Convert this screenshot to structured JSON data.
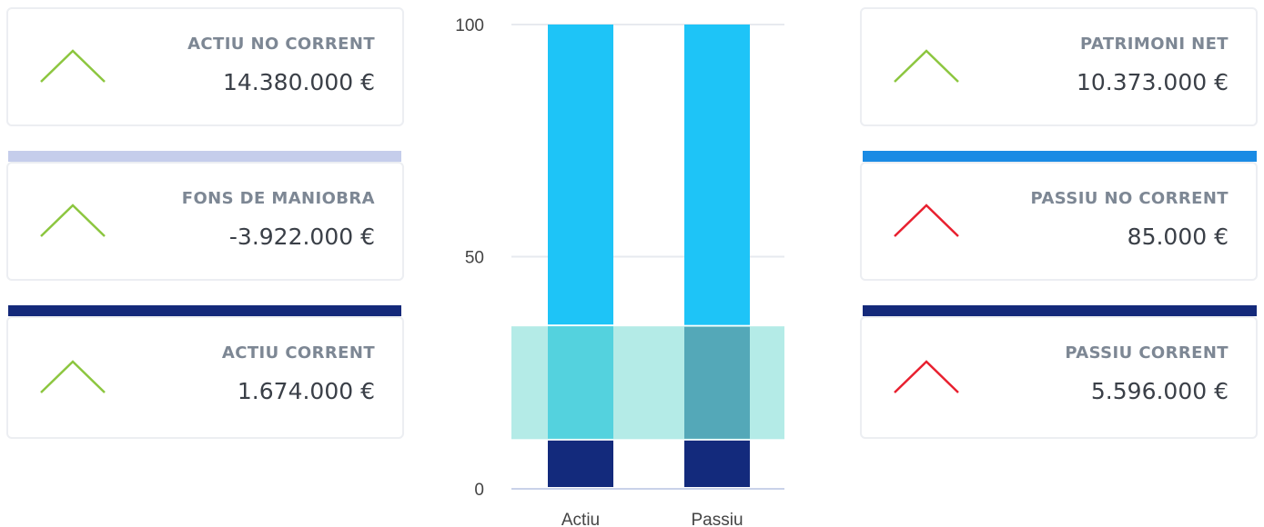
{
  "cards": {
    "left": [
      {
        "label": "ACTIU NO CORRENT",
        "value": "14.380.000 €",
        "trend": "up",
        "trend_color": "#8cc63f",
        "accent_color": ""
      },
      {
        "label": "FONS DE MANIOBRA",
        "value": "-3.922.000 €",
        "trend": "up",
        "trend_color": "#8cc63f",
        "accent_color": "#c5cdeb"
      },
      {
        "label": "ACTIU CORRENT",
        "value": "1.674.000 €",
        "trend": "up",
        "trend_color": "#8cc63f",
        "accent_color": "#14297a"
      }
    ],
    "right": [
      {
        "label": "PATRIMONI NET",
        "value": "10.373.000 €",
        "trend": "up",
        "trend_color": "#8cc63f",
        "accent_color": ""
      },
      {
        "label": "PASSIU NO CORRENT",
        "value": "85.000 €",
        "trend": "down",
        "trend_color": "#e8202f",
        "accent_color": "#1a8be4"
      },
      {
        "label": "PASSIU CORRENT",
        "value": "5.596.000 €",
        "trend": "down",
        "trend_color": "#e8202f",
        "accent_color": "#14297a"
      }
    ]
  },
  "chart_data": {
    "type": "bar",
    "stacked": true,
    "categories": [
      "Actiu",
      "Passiu"
    ],
    "yticks": [
      0,
      50,
      100
    ],
    "ylim": [
      0,
      100
    ],
    "grid": true,
    "series": [
      {
        "color": "#132a7c",
        "values": [
          10.4,
          10.4
        ]
      },
      {
        "color": "#1bc3ea",
        "values": [
          24.6,
          24.5
        ]
      },
      {
        "color": "#1ec4f7",
        "values": [
          65.0,
          65.1
        ]
      }
    ],
    "band": {
      "from": 10.7,
      "to": 35.0,
      "color": "#7edcd6",
      "opacity": 0.58
    },
    "colors": {
      "grid": "#e7eaef",
      "axis": "#c9d2e9",
      "passiu_mid": "#1b6090"
    }
  }
}
